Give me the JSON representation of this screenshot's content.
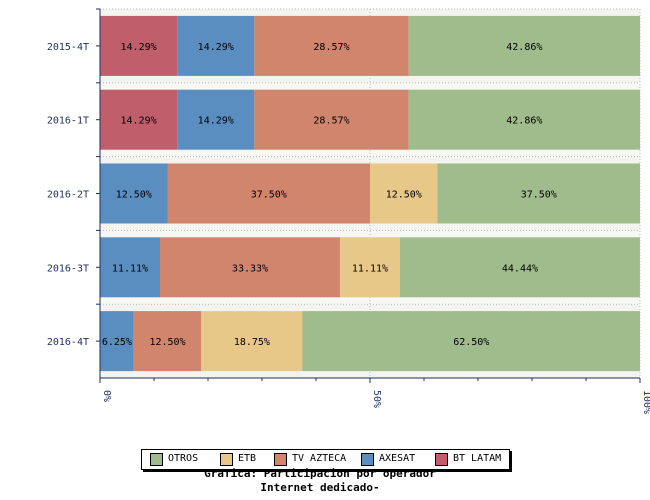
{
  "chart_data": {
    "type": "bar",
    "orientation": "horizontal",
    "stacked": "percent",
    "categories": [
      "2015-4T",
      "2016-1T",
      "2016-2T",
      "2016-3T",
      "2016-4T"
    ],
    "series": [
      {
        "name": "BT LATAM",
        "color": "#c15e6b",
        "values": [
          14.29,
          14.29,
          0,
          0,
          0
        ]
      },
      {
        "name": "AXESAT",
        "color": "#5b8ec0",
        "values": [
          14.29,
          14.29,
          12.5,
          11.11,
          6.25
        ]
      },
      {
        "name": "TV AZTECA",
        "color": "#d0856c",
        "values": [
          28.57,
          28.57,
          37.5,
          33.33,
          12.5
        ]
      },
      {
        "name": "ETB",
        "color": "#e8c888",
        "values": [
          0,
          0,
          12.5,
          11.11,
          18.75
        ]
      },
      {
        "name": "OTROS",
        "color": "#a0bc8c",
        "values": [
          42.86,
          42.86,
          37.5,
          44.44,
          62.5
        ]
      }
    ],
    "xlim": [
      0,
      100
    ],
    "x_ticks": [
      "0%",
      "50%",
      "100%"
    ],
    "grid": true,
    "legend": {
      "position": "bottom",
      "order": [
        "OTROS",
        "ETB",
        "TV AZTECA",
        "AXESAT",
        "BT LATAM"
      ]
    },
    "caption": [
      "Grafica: Participacion por operador",
      "Internet dedicado-"
    ]
  }
}
